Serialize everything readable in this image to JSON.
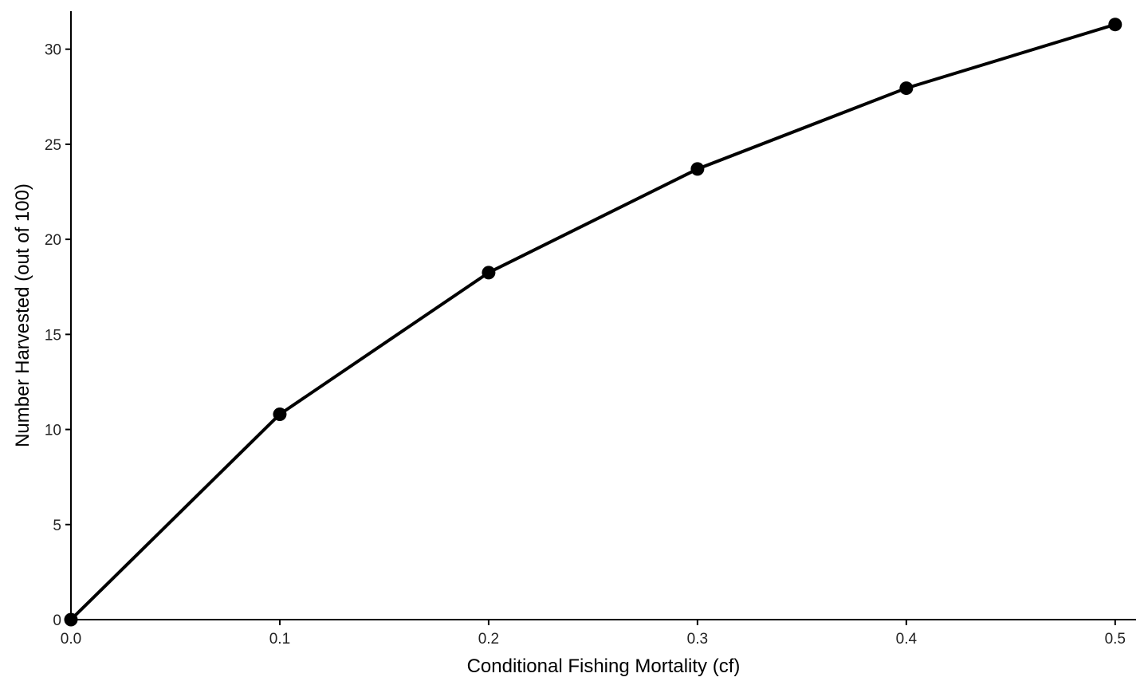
{
  "chart_data": {
    "type": "line",
    "title": "",
    "xlabel": "Conditional Fishing Mortality (cf)",
    "ylabel": "Number Harvested (out of 100)",
    "xlim": [
      0,
      0.51
    ],
    "ylim": [
      0,
      32
    ],
    "x_ticks": [
      "0.0",
      "0.1",
      "0.2",
      "0.3",
      "0.4",
      "0.5"
    ],
    "y_ticks": [
      "0",
      "5",
      "10",
      "15",
      "20",
      "25",
      "30"
    ],
    "grid": false,
    "legend": "none",
    "colors": {
      "line": "#000000",
      "points": "#000000"
    },
    "series": [
      {
        "x": [
          0.0,
          0.1,
          0.2,
          0.3,
          0.4,
          0.5
        ],
        "y": [
          0.0,
          10.8,
          18.25,
          23.7,
          27.95,
          31.3
        ]
      }
    ]
  }
}
